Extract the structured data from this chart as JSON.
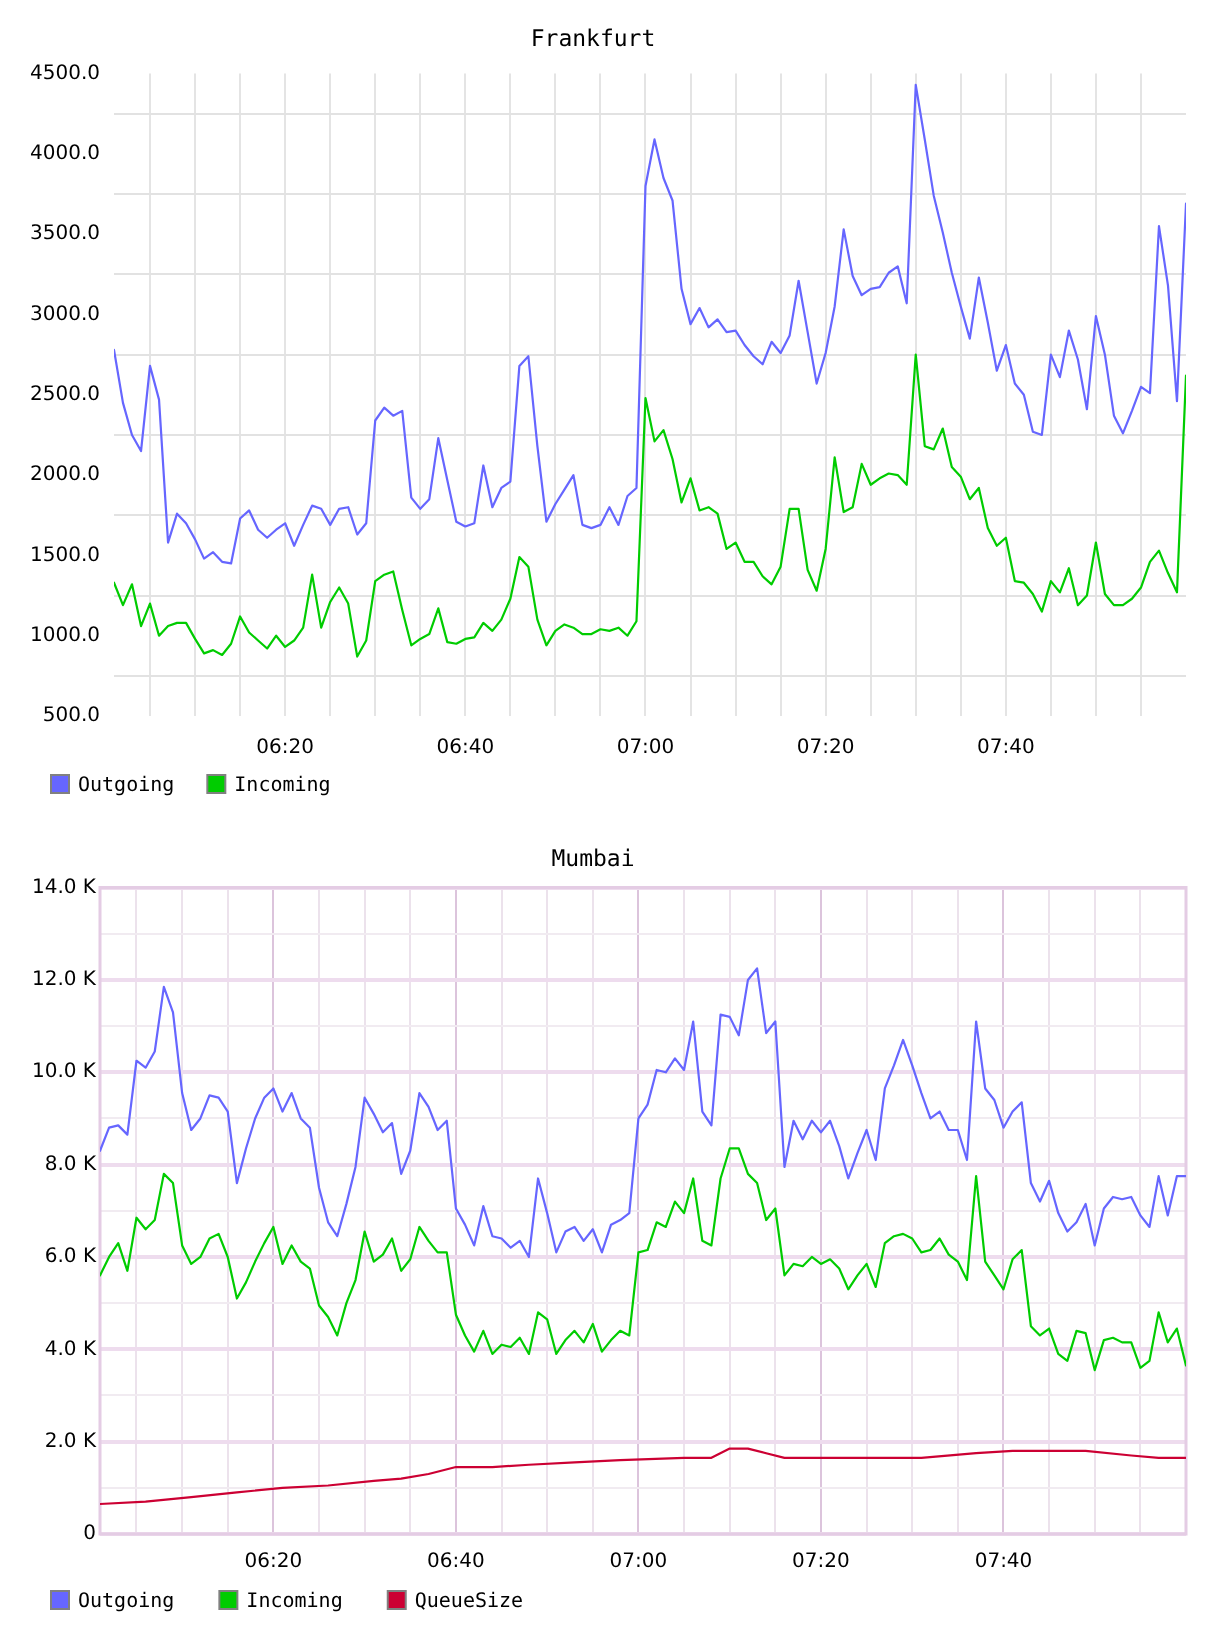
{
  "chart_data": [
    {
      "type": "line",
      "title": "Frankfurt",
      "x": [
        6.0167,
        6.0333,
        6.05,
        6.0667,
        6.0833,
        6.1,
        6.1167,
        6.1333,
        6.15,
        6.1667,
        6.1833,
        6.2,
        6.2167,
        6.2333,
        6.25,
        6.2667,
        6.2833,
        6.3,
        6.3167,
        6.3333,
        6.35,
        6.3667,
        6.3833,
        6.4,
        6.4167,
        6.4333,
        6.45,
        6.4667,
        6.4833,
        6.5,
        6.5167,
        6.5333,
        6.55,
        6.5667,
        6.5833,
        6.6,
        6.6167,
        6.6333,
        6.65,
        6.6667,
        6.6833,
        6.7,
        6.7167,
        6.7333,
        6.75,
        6.7667,
        6.7833,
        6.8,
        6.8167,
        6.8333,
        6.85,
        6.8667,
        6.8833,
        6.9,
        6.9167,
        6.9333,
        6.95,
        6.9667,
        6.9833,
        7,
        7.0167,
        7.0333,
        7.05,
        7.0667,
        7.0833,
        7.1,
        7.1167,
        7.1333,
        7.15,
        7.1667,
        7.1833,
        7.2,
        7.2167,
        7.2333,
        7.25,
        7.2667,
        7.2833,
        7.3,
        7.3167,
        7.3333,
        7.35,
        7.3667,
        7.3833,
        7.4,
        7.4167,
        7.4333,
        7.45,
        7.4667,
        7.4833,
        7.5,
        7.5167,
        7.5333,
        7.55,
        7.5667,
        7.5833,
        7.6,
        7.6167,
        7.6333,
        7.65,
        7.6667,
        7.6833,
        7.7,
        7.7167,
        7.7333,
        7.75,
        7.7667,
        7.7833,
        7.8,
        7.8167,
        7.8333,
        7.85,
        7.8667,
        7.8833,
        7.9,
        7.9167,
        7.9333,
        7.95,
        7.9667,
        7.9833,
        8
      ],
      "series": [
        {
          "name": "Outgoing",
          "color": "#6666ff",
          "values": [
            2780,
            2450,
            2250,
            2150,
            2680,
            2470,
            1580,
            1760,
            1700,
            1600,
            1480,
            1520,
            1460,
            1450,
            1730,
            1780,
            1660,
            1610,
            1660,
            1700,
            1560,
            1690,
            1810,
            1790,
            1690,
            1790,
            1800,
            1630,
            1700,
            2340,
            2420,
            2370,
            2400,
            1860,
            1790,
            1850,
            2230,
            1970,
            1710,
            1680,
            1700,
            2060,
            1800,
            1920,
            1960,
            2680,
            2740,
            2180,
            1710,
            1820,
            1910,
            2000,
            1690,
            1670,
            1690,
            1800,
            1690,
            1870,
            1920,
            3800,
            4090,
            3850,
            3710,
            3160,
            2940,
            3040,
            2920,
            2970,
            2890,
            2900,
            2810,
            2740,
            2690,
            2830,
            2760,
            2870,
            3210,
            2890,
            2570,
            2760,
            3050,
            3530,
            3240,
            3120,
            3160,
            3170,
            3260,
            3300,
            3070,
            4430,
            4090,
            3740,
            3510,
            3260,
            3050,
            2850,
            3230,
            2950,
            2650,
            2810,
            2570,
            2500,
            2270,
            2250,
            2750,
            2610,
            2900,
            2720,
            2410,
            2990,
            2750,
            2370,
            2260,
            2400,
            2550,
            2510,
            3550,
            3180,
            2460,
            3690
          ]
        },
        {
          "name": "Incoming",
          "color": "#00cc00",
          "values": [
            1330,
            1190,
            1320,
            1060,
            1200,
            1000,
            1060,
            1080,
            1080,
            980,
            890,
            910,
            880,
            950,
            1120,
            1020,
            970,
            920,
            1000,
            930,
            970,
            1050,
            1380,
            1050,
            1210,
            1300,
            1200,
            870,
            970,
            1340,
            1380,
            1400,
            1160,
            940,
            980,
            1010,
            1170,
            960,
            950,
            980,
            990,
            1080,
            1030,
            1100,
            1230,
            1490,
            1430,
            1100,
            940,
            1030,
            1070,
            1050,
            1010,
            1010,
            1040,
            1030,
            1050,
            1000,
            1090,
            2480,
            2210,
            2280,
            2100,
            1830,
            1980,
            1780,
            1800,
            1760,
            1540,
            1580,
            1460,
            1460,
            1370,
            1320,
            1430,
            1790,
            1790,
            1410,
            1280,
            1540,
            2110,
            1770,
            1800,
            2070,
            1940,
            1980,
            2010,
            2000,
            1940,
            2750,
            2180,
            2160,
            2290,
            2050,
            1990,
            1850,
            1920,
            1670,
            1560,
            1610,
            1340,
            1330,
            1260,
            1150,
            1340,
            1270,
            1420,
            1190,
            1250,
            1580,
            1260,
            1190,
            1190,
            1230,
            1300,
            1460,
            1530,
            1390,
            1270,
            2620
          ]
        }
      ],
      "xlim": [
        6.0167,
        8
      ],
      "xticks": [
        {
          "value": 6.0833,
          "label": null
        },
        {
          "value": 6.1667,
          "label": null
        },
        {
          "value": 6.25,
          "label": null
        },
        {
          "value": 6.3333,
          "label": "06:20"
        },
        {
          "value": 6.4167,
          "label": null
        },
        {
          "value": 6.5,
          "label": null
        },
        {
          "value": 6.5833,
          "label": null
        },
        {
          "value": 6.6667,
          "label": "06:40"
        },
        {
          "value": 6.75,
          "label": null
        },
        {
          "value": 6.8333,
          "label": null
        },
        {
          "value": 6.9167,
          "label": null
        },
        {
          "value": 7,
          "label": "07:00"
        },
        {
          "value": 7.0833,
          "label": null
        },
        {
          "value": 7.1667,
          "label": null
        },
        {
          "value": 7.25,
          "label": null
        },
        {
          "value": 7.3333,
          "label": "07:20"
        },
        {
          "value": 7.4167,
          "label": null
        },
        {
          "value": 7.5,
          "label": null
        },
        {
          "value": 7.5833,
          "label": null
        },
        {
          "value": 7.6667,
          "label": "07:40"
        },
        {
          "value": 7.75,
          "label": null
        },
        {
          "value": 7.8333,
          "label": null
        },
        {
          "value": 7.9167,
          "label": null
        }
      ],
      "ylim": [
        500,
        4500
      ],
      "yticks": [
        {
          "value": 500,
          "label": "500.0"
        },
        {
          "value": 750,
          "label": null
        },
        {
          "value": 1000,
          "label": "1000.0"
        },
        {
          "value": 1250,
          "label": null
        },
        {
          "value": 1500,
          "label": "1500.0"
        },
        {
          "value": 1750,
          "label": null
        },
        {
          "value": 2000,
          "label": "2000.0"
        },
        {
          "value": 2250,
          "label": null
        },
        {
          "value": 2500,
          "label": "2500.0"
        },
        {
          "value": 2750,
          "label": null
        },
        {
          "value": 3000,
          "label": "3000.0"
        },
        {
          "value": 3250,
          "label": null
        },
        {
          "value": 3500,
          "label": "3500.0"
        },
        {
          "value": 3750,
          "label": null
        },
        {
          "value": 4000,
          "label": "4000.0"
        },
        {
          "value": 4250,
          "label": null
        },
        {
          "value": 4500,
          "label": "4500.0"
        }
      ],
      "grid": true,
      "legend": "bottom left"
    },
    {
      "type": "line",
      "title": "Mumbai",
      "x": [
        6.0167,
        6.0333,
        6.05,
        6.0667,
        6.0833,
        6.1,
        6.1167,
        6.1333,
        6.15,
        6.1667,
        6.1833,
        6.2,
        6.2167,
        6.2333,
        6.25,
        6.2667,
        6.2833,
        6.3,
        6.3167,
        6.3333,
        6.35,
        6.3667,
        6.3833,
        6.4,
        6.4167,
        6.4333,
        6.45,
        6.4667,
        6.4833,
        6.5,
        6.5167,
        6.5333,
        6.55,
        6.5667,
        6.5833,
        6.6,
        6.6167,
        6.6333,
        6.65,
        6.6667,
        6.6833,
        6.7,
        6.7167,
        6.7333,
        6.75,
        6.7667,
        6.7833,
        6.8,
        6.8167,
        6.8333,
        6.85,
        6.8667,
        6.8833,
        6.9,
        6.9167,
        6.9333,
        6.95,
        6.9667,
        6.9833,
        7,
        7.0167,
        7.0333,
        7.05,
        7.0667,
        7.0833,
        7.1,
        7.1167,
        7.1333,
        7.15,
        7.1667,
        7.1833,
        7.2,
        7.2167,
        7.2333,
        7.25,
        7.2667,
        7.2833,
        7.3,
        7.3167,
        7.3333,
        7.35,
        7.3667,
        7.3833,
        7.4,
        7.4167,
        7.4333,
        7.45,
        7.4667,
        7.4833,
        7.5,
        7.5167,
        7.5333,
        7.55,
        7.5667,
        7.5833,
        7.6,
        7.6167,
        7.6333,
        7.65,
        7.6667,
        7.6833,
        7.7,
        7.7167,
        7.7333,
        7.75,
        7.7667,
        7.7833,
        7.8,
        7.8167,
        7.8333,
        7.85,
        7.8667,
        7.8833,
        7.9,
        7.9167,
        7.9333,
        7.95,
        7.9667,
        7.9833,
        8
      ],
      "series": [
        {
          "name": "Outgoing",
          "color": "#6666ff",
          "values": [
            8300,
            8800,
            8850,
            8650,
            10250,
            10100,
            10450,
            11850,
            11300,
            9550,
            8750,
            9000,
            9500,
            9450,
            9150,
            7600,
            8350,
            9000,
            9450,
            9650,
            9150,
            9550,
            9000,
            8800,
            7500,
            6750,
            6450,
            7150,
            7950,
            9450,
            9100,
            8700,
            8900,
            7800,
            8300,
            9550,
            9250,
            8750,
            8950,
            7050,
            6700,
            6250,
            7100,
            6450,
            6400,
            6200,
            6350,
            6000,
            7700,
            6950,
            6100,
            6550,
            6650,
            6350,
            6600,
            6100,
            6700,
            6800,
            6950,
            9000,
            9300,
            10050,
            10000,
            10300,
            10050,
            11100,
            9150,
            8850,
            11250,
            11200,
            10800,
            12000,
            12250,
            10850,
            11100,
            7950,
            8950,
            8550,
            8950,
            8700,
            8950,
            8400,
            7700,
            8250,
            8750,
            8100,
            9650,
            10150,
            10700,
            10150,
            9550,
            9000,
            9150,
            8750,
            8750,
            8100,
            11100,
            9650,
            9400,
            8800,
            9150,
            9350,
            7600,
            7200,
            7650,
            6950,
            6550,
            6750,
            7150,
            6250,
            7050,
            7300,
            7250,
            7300,
            6900,
            6650,
            7750,
            6900,
            7750,
            7750
          ]
        },
        {
          "name": "Incoming",
          "color": "#00cc00",
          "values": [
            5600,
            6000,
            6300,
            5700,
            6850,
            6600,
            6800,
            7800,
            7600,
            6250,
            5850,
            6000,
            6400,
            6500,
            6000,
            5100,
            5450,
            5900,
            6300,
            6650,
            5850,
            6250,
            5900,
            5750,
            4950,
            4700,
            4300,
            5000,
            5500,
            6550,
            5900,
            6050,
            6400,
            5700,
            5950,
            6650,
            6350,
            6100,
            6100,
            4750,
            4300,
            3950,
            4400,
            3900,
            4100,
            4050,
            4250,
            3900,
            4800,
            4650,
            3900,
            4200,
            4400,
            4150,
            4550,
            3950,
            4200,
            4400,
            4300,
            6100,
            6150,
            6750,
            6650,
            7200,
            6950,
            7700,
            6350,
            6250,
            7700,
            8350,
            8350,
            7800,
            7600,
            6800,
            7050,
            5600,
            5850,
            5800,
            6000,
            5850,
            5950,
            5750,
            5300,
            5600,
            5850,
            5350,
            6300,
            6450,
            6500,
            6400,
            6100,
            6150,
            6400,
            6050,
            5900,
            5500,
            7750,
            5900,
            5600,
            5300,
            5950,
            6150,
            4500,
            4300,
            4450,
            3900,
            3750,
            4400,
            4350,
            3550,
            4200,
            4250,
            4150,
            4150,
            3600,
            3750,
            4800,
            4150,
            4450,
            3650
          ]
        },
        {
          "name": "QueueSize",
          "color": "#cc0033",
          "x": [
            6.0167,
            6.1,
            6.1833,
            6.2667,
            6.35,
            6.4333,
            6.5167,
            6.5667,
            6.6167,
            6.6667,
            6.7333,
            6.8,
            6.8833,
            6.9667,
            7.0833,
            7.1333,
            7.1667,
            7.2,
            7.2333,
            7.2667,
            7.5167,
            7.6167,
            7.6833,
            7.8167,
            7.9,
            7.95,
            8
          ],
          "values": [
            650,
            700,
            800,
            900,
            1000,
            1050,
            1150,
            1200,
            1300,
            1450,
            1450,
            1500,
            1550,
            1600,
            1650,
            1650,
            1850,
            1850,
            1750,
            1650,
            1650,
            1750,
            1800,
            1800,
            1700,
            1650,
            1650
          ]
        }
      ],
      "xlim": [
        6.0167,
        8
      ],
      "xticks": [
        {
          "value": 6.0833,
          "label": null
        },
        {
          "value": 6.1667,
          "label": null
        },
        {
          "value": 6.25,
          "label": null
        },
        {
          "value": 6.3333,
          "label": "06:20"
        },
        {
          "value": 6.4167,
          "label": null
        },
        {
          "value": 6.5,
          "label": null
        },
        {
          "value": 6.5833,
          "label": null
        },
        {
          "value": 6.6667,
          "label": "06:40"
        },
        {
          "value": 6.75,
          "label": null
        },
        {
          "value": 6.8333,
          "label": null
        },
        {
          "value": 6.9167,
          "label": null
        },
        {
          "value": 7,
          "label": "07:00"
        },
        {
          "value": 7.0833,
          "label": null
        },
        {
          "value": 7.1667,
          "label": null
        },
        {
          "value": 7.25,
          "label": null
        },
        {
          "value": 7.3333,
          "label": "07:20"
        },
        {
          "value": 7.4167,
          "label": null
        },
        {
          "value": 7.5,
          "label": null
        },
        {
          "value": 7.5833,
          "label": null
        },
        {
          "value": 7.6667,
          "label": "07:40"
        },
        {
          "value": 7.75,
          "label": null
        },
        {
          "value": 7.8333,
          "label": null
        },
        {
          "value": 7.9167,
          "label": null
        }
      ],
      "ylim": [
        0,
        14000
      ],
      "yticks": [
        0,
        {
          "value": 1000,
          "label": null
        },
        {
          "value": 2000,
          "label": "2.0 K"
        },
        {
          "value": 3000,
          "label": null
        },
        {
          "value": 4000,
          "label": "4.0 K"
        },
        {
          "value": 5000,
          "label": null
        },
        {
          "value": 6000,
          "label": "6.0 K"
        },
        {
          "value": 7000,
          "label": null
        },
        {
          "value": 8000,
          "label": "8.0 K"
        },
        {
          "value": 9000,
          "label": null
        },
        {
          "value": 10000,
          "label": "10.0 K"
        },
        {
          "value": 11000,
          "label": null
        },
        {
          "value": 12000,
          "label": "12.0 K"
        },
        {
          "value": 13000,
          "label": null
        },
        {
          "value": 14000,
          "label": "14.0 K"
        }
      ],
      "grid": true,
      "legend": "bottom left"
    }
  ]
}
